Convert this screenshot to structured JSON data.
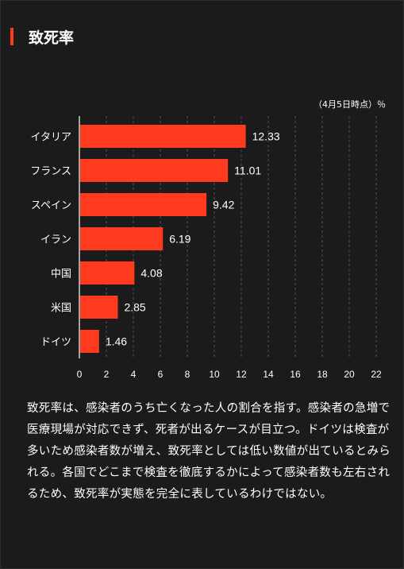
{
  "title": "致死率",
  "note": "（4月5日時点）％",
  "colors": {
    "accent": "#ff3a1f",
    "background": "#1b1b1b",
    "text": "#ffffff"
  },
  "chart_data": {
    "type": "bar",
    "orientation": "horizontal",
    "categories": [
      "イタリア",
      "フランス",
      "スペイン",
      "イラン",
      "中国",
      "米国",
      "ドイツ"
    ],
    "values": [
      12.33,
      11.01,
      9.42,
      6.19,
      4.08,
      2.85,
      1.46
    ],
    "value_labels": [
      "12.33",
      "11.01",
      "9.42",
      "6.19",
      "4.08",
      "2.85",
      "1.46"
    ],
    "xlim": [
      0,
      22
    ],
    "xticks": [
      0,
      2,
      4,
      6,
      8,
      10,
      12,
      14,
      16,
      18,
      20,
      22
    ],
    "grid": true,
    "bar_color": "#ff3a1f"
  },
  "description": "致死率は、感染者のうち亡くなった人の割合を指す。感染者の急増で医療現場が対応できず、死者が出るケースが目立つ。ドイツは検査が多いため感染者数が増え、致死率としては低い数値が出ているとみられる。各国でどこまで検査を徹底するかによって感染者数も左右されるため、致死率が実態を完全に表しているわけではない。"
}
